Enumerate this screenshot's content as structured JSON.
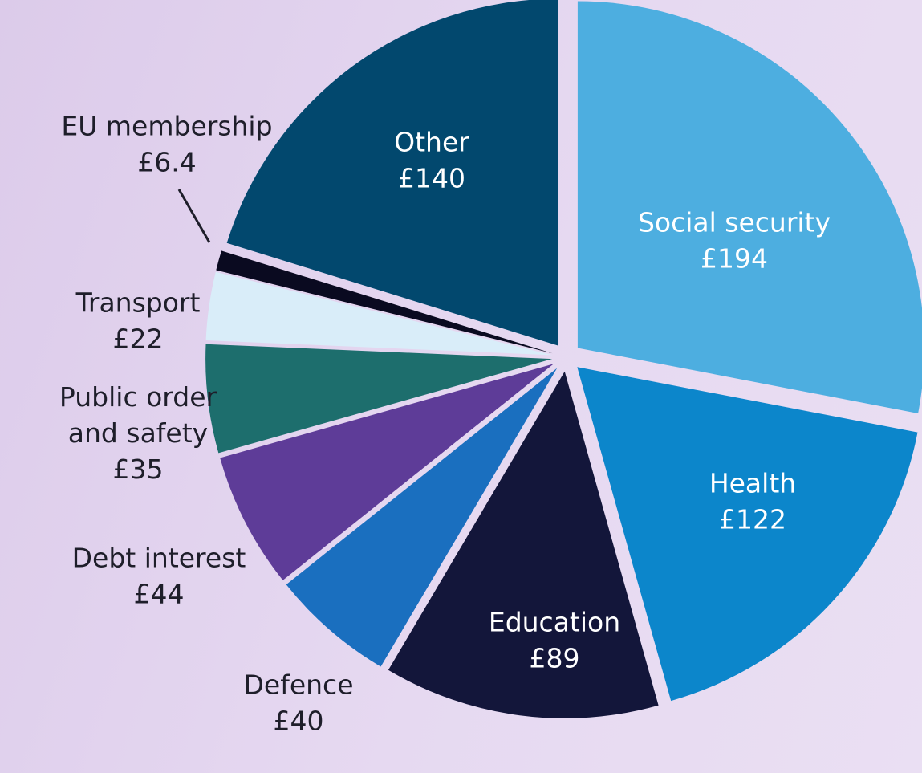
{
  "chart_data": {
    "type": "pie",
    "title": "",
    "slices": [
      {
        "label": [
          "Social security"
        ],
        "value_label": "£194",
        "value": 194,
        "color": "#4daee0",
        "placement": "inside"
      },
      {
        "label": [
          "Health"
        ],
        "value_label": "£122",
        "value": 122,
        "color": "#0c86cb",
        "placement": "inside"
      },
      {
        "label": [
          "Education"
        ],
        "value_label": "£89",
        "value": 89,
        "color": "#13163a",
        "placement": "inside"
      },
      {
        "label": [
          "Defence"
        ],
        "value_label": "£40",
        "value": 40,
        "color": "#1a6fbf",
        "placement": "outside"
      },
      {
        "label": [
          "Debt interest"
        ],
        "value_label": "£44",
        "value": 44,
        "color": "#5e3c98",
        "placement": "outside"
      },
      {
        "label": [
          "Public order",
          "and safety"
        ],
        "value_label": "£35",
        "value": 35,
        "color": "#1d6e6d",
        "placement": "outside"
      },
      {
        "label": [
          "Transport"
        ],
        "value_label": "£22",
        "value": 22,
        "color": "#d9edf9",
        "placement": "outside"
      },
      {
        "label": [
          "EU membership"
        ],
        "value_label": "£6.4",
        "value": 6.4,
        "color": "#0a0a20",
        "placement": "outside-leader"
      },
      {
        "label": [
          "Other"
        ],
        "value_label": "£140",
        "value": 140,
        "color": "#02486e",
        "placement": "inside"
      }
    ]
  }
}
